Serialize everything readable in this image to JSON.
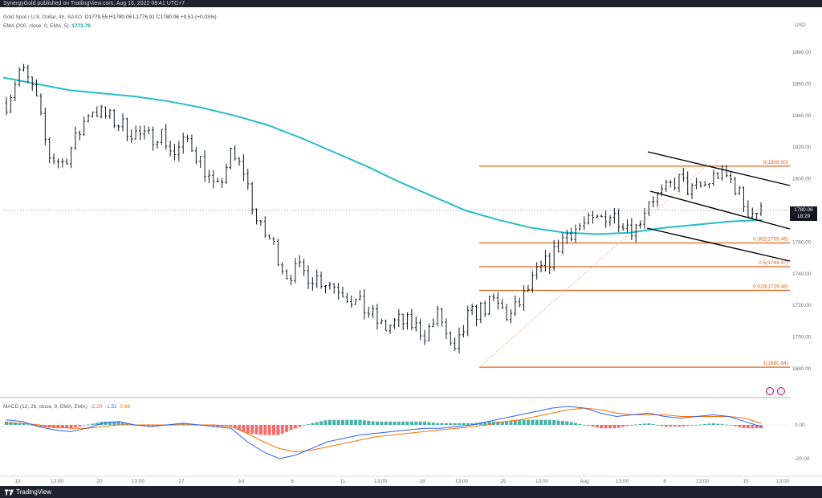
{
  "header": {
    "publisher": "SynergyGold published on TradingView.com, Aug 16, 2022 08:41 UTC+7"
  },
  "legend": {
    "symbol": "Gold Spot / U.S. Dollar, 4h, SAXO",
    "ohlc": "O1779.55 H1780.06 L1776.91 C1780.06 +0.51 (+0.03%)",
    "ema_label": "EMA (200, close, 0, EMA, 5)",
    "ema_value": "1773.70",
    "macd_label": "MACD (12, 26, close, 9, EMA, EMA)",
    "macd_hist": "-2.20",
    "macd_line": "-1.51",
    "macd_signal": "0.69"
  },
  "price_tag": {
    "price": "1780.06",
    "countdown": "18:29"
  },
  "footer": {
    "brand": "TradingView"
  },
  "colors": {
    "ema": "#26bdc6",
    "fib": "#e1651b",
    "macd": "#2962ff",
    "signal": "#ff6d00",
    "hist_up": "#26a69a",
    "hist_down": "#ef5350",
    "candle": "#131722"
  },
  "chart_data": {
    "type": "candlestick",
    "currency": "USD",
    "y_ticks": [
      "1880.00",
      "1860.00",
      "1840.00",
      "1820.00",
      "1800.00",
      "1780.00",
      "1760.00",
      "1740.00",
      "1720.00",
      "1700.00",
      "1680.00"
    ],
    "ylim": [
      1672,
      1888
    ],
    "x_ticks": [
      "13",
      "13:00",
      "20",
      "13:00",
      "27",
      "Jul",
      "6",
      "11",
      "13:00",
      "18",
      "13:00",
      "25",
      "13:00",
      "Aug",
      "13:00",
      "8",
      "13:00",
      "15",
      "13:00"
    ],
    "close_path": [
      1848,
      1870,
      1855,
      1815,
      1810,
      1825,
      1845,
      1840,
      1835,
      1830,
      1825,
      1830,
      1815,
      1825,
      1810,
      1790,
      1815,
      1805,
      1770,
      1760,
      1740,
      1742,
      1738,
      1735,
      1730,
      1722,
      1715,
      1705,
      1710,
      1708,
      1702,
      1715,
      1686,
      1712,
      1718,
      1722,
      1712,
      1725,
      1740,
      1750,
      1765,
      1770,
      1772,
      1778,
      1775,
      1768,
      1788,
      1790,
      1800,
      1792,
      1796,
      1804,
      1798,
      1780,
      1779
    ],
    "ema200_path": [
      1864,
      1860,
      1856,
      1854,
      1852,
      1849,
      1845,
      1840,
      1834,
      1826,
      1817,
      1808,
      1798,
      1789,
      1780,
      1774,
      1769,
      1766,
      1765,
      1766,
      1769,
      1771,
      1773,
      1774
    ],
    "fibonacci": [
      {
        "level": "0",
        "value": "1808.00",
        "label": "0(1808.00)"
      },
      {
        "level": "0.382",
        "value": "1759.46",
        "label": "0.382(1759.46)"
      },
      {
        "level": "0.5",
        "value": "1744.47",
        "label": "0.5(1744.47)"
      },
      {
        "level": "0.618",
        "value": "1729.48",
        "label": "0.618(1729.48)"
      },
      {
        "level": "1",
        "value": "1680.94",
        "label": "1(1680.94)"
      }
    ],
    "macd": {
      "y_ticks": [
        "0.00",
        "-20.00"
      ],
      "ylim": [
        -24,
        14
      ],
      "macd_path": [
        3,
        2,
        -1,
        -3,
        -4,
        -2,
        1,
        2,
        0,
        -1,
        0,
        1,
        0,
        -1,
        -2,
        -10,
        -16,
        -20,
        -18,
        -14,
        -10,
        -8,
        -6,
        -5,
        -4,
        -3,
        -2,
        -2,
        -1,
        0,
        2,
        4,
        6,
        8,
        10,
        11,
        10,
        7,
        5,
        6,
        7,
        5,
        4,
        5,
        6,
        5,
        2,
        -1
      ],
      "signal_path": [
        1,
        1,
        0,
        -1,
        -2,
        -2,
        -1,
        0,
        0,
        0,
        0,
        0,
        0,
        0,
        -1,
        -5,
        -10,
        -14,
        -16,
        -15,
        -13,
        -11,
        -9,
        -7,
        -6,
        -5,
        -4,
        -3,
        -2,
        -1,
        0,
        2,
        3,
        5,
        7,
        9,
        10,
        9,
        7,
        6,
        6,
        6,
        5,
        5,
        5,
        5,
        4,
        1
      ]
    }
  }
}
